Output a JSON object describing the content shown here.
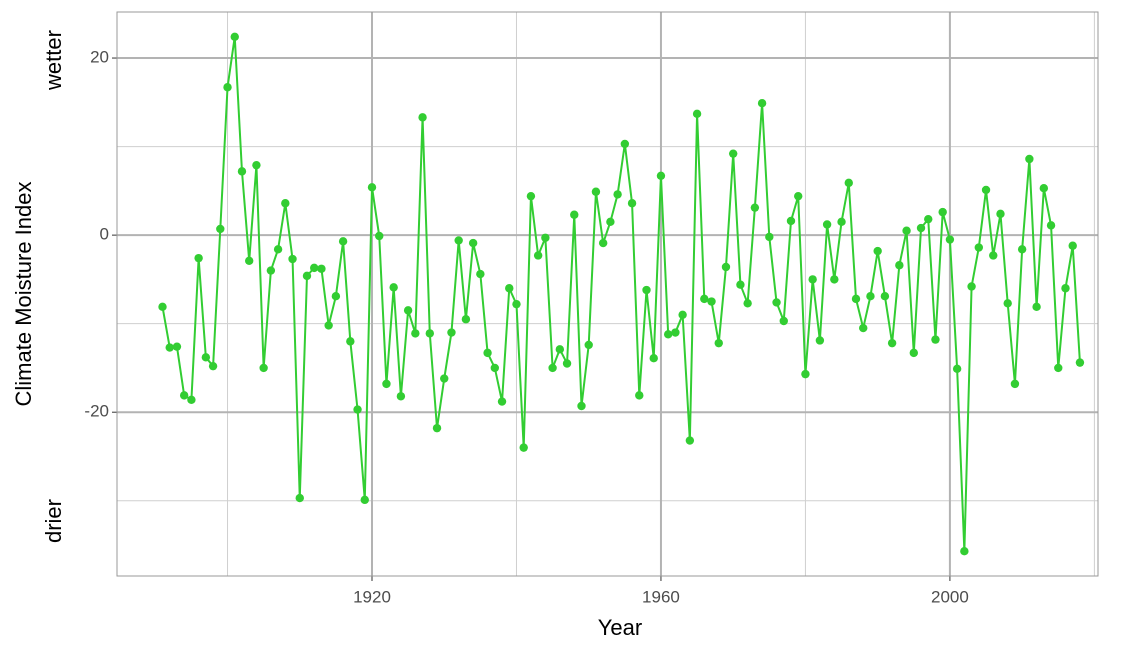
{
  "chart_data": {
    "type": "line",
    "xlabel": "Year",
    "ylabel": "Climate Moisture Index",
    "annotations": [
      "wetter",
      "drier"
    ],
    "x": [
      1891,
      1892,
      1893,
      1894,
      1895,
      1896,
      1897,
      1898,
      1899,
      1900,
      1901,
      1902,
      1903,
      1904,
      1905,
      1906,
      1907,
      1908,
      1909,
      1910,
      1911,
      1912,
      1913,
      1914,
      1915,
      1916,
      1917,
      1918,
      1919,
      1920,
      1921,
      1922,
      1923,
      1924,
      1925,
      1926,
      1927,
      1928,
      1929,
      1930,
      1931,
      1932,
      1933,
      1934,
      1935,
      1936,
      1937,
      1938,
      1939,
      1940,
      1941,
      1942,
      1943,
      1944,
      1945,
      1946,
      1947,
      1948,
      1949,
      1950,
      1951,
      1952,
      1953,
      1954,
      1955,
      1956,
      1957,
      1958,
      1959,
      1960,
      1961,
      1962,
      1963,
      1964,
      1965,
      1966,
      1967,
      1968,
      1969,
      1970,
      1971,
      1972,
      1973,
      1974,
      1975,
      1976,
      1977,
      1978,
      1979,
      1980,
      1981,
      1982,
      1983,
      1984,
      1985,
      1986,
      1987,
      1988,
      1989,
      1990,
      1991,
      1992,
      1993,
      1994,
      1995,
      1996,
      1997,
      1998,
      1999,
      2000,
      2001,
      2002,
      2003,
      2004,
      2005,
      2006,
      2007,
      2008,
      2009,
      2010,
      2011,
      2012,
      2013,
      2014,
      2015,
      2016,
      2017,
      2018
    ],
    "values": [
      -8.1,
      -12.7,
      -12.6,
      -18.1,
      -18.6,
      -2.6,
      -13.8,
      -14.8,
      0.7,
      16.7,
      22.4,
      7.2,
      -2.9,
      7.9,
      -15.0,
      -4.0,
      -1.6,
      3.6,
      -2.7,
      -29.7,
      -4.6,
      -3.7,
      -3.8,
      -10.2,
      -6.9,
      -0.7,
      -12.0,
      -19.7,
      -29.9,
      5.4,
      -0.1,
      -16.8,
      -5.9,
      -18.2,
      -8.5,
      -11.1,
      13.3,
      -11.1,
      -21.8,
      -16.2,
      -11.0,
      -0.6,
      -9.5,
      -0.9,
      -4.4,
      -13.3,
      -15.0,
      -18.8,
      -6.0,
      -7.8,
      -24.0,
      4.4,
      -2.3,
      -0.3,
      -15.0,
      -12.9,
      -14.5,
      2.3,
      -19.3,
      -12.4,
      4.9,
      -0.9,
      1.5,
      4.6,
      10.3,
      3.6,
      -18.1,
      -6.2,
      -13.9,
      6.7,
      -11.2,
      -11.0,
      -9.0,
      -23.2,
      13.7,
      -7.2,
      -7.5,
      -12.2,
      -3.6,
      9.2,
      -5.6,
      -7.7,
      3.1,
      14.9,
      -0.2,
      -7.6,
      -9.7,
      1.6,
      4.4,
      -15.7,
      -5.0,
      -11.9,
      1.2,
      -5.0,
      1.5,
      5.9,
      -7.2,
      -10.5,
      -6.9,
      -1.8,
      -6.9,
      -12.2,
      -3.4,
      0.5,
      -13.3,
      0.8,
      1.8,
      -11.8,
      2.6,
      -0.5,
      -15.1,
      -35.7,
      -5.8,
      -1.4,
      5.1,
      -2.3,
      2.4,
      -7.7,
      -16.8,
      -1.6,
      8.6,
      -8.1,
      5.3,
      1.1,
      -15.0,
      -6.0,
      -1.2,
      -14.4
    ],
    "color": "#32cd32",
    "xlim": [
      1884.7,
      2020.5
    ],
    "ylim": [
      -38.5,
      25.2
    ],
    "xticks": [
      1920,
      1960,
      2000
    ],
    "yticks": [
      -20,
      0,
      20
    ],
    "xminor": [
      1900,
      1940,
      1980,
      2020
    ],
    "yminor": [
      -30,
      -10,
      10
    ],
    "grid": true
  }
}
